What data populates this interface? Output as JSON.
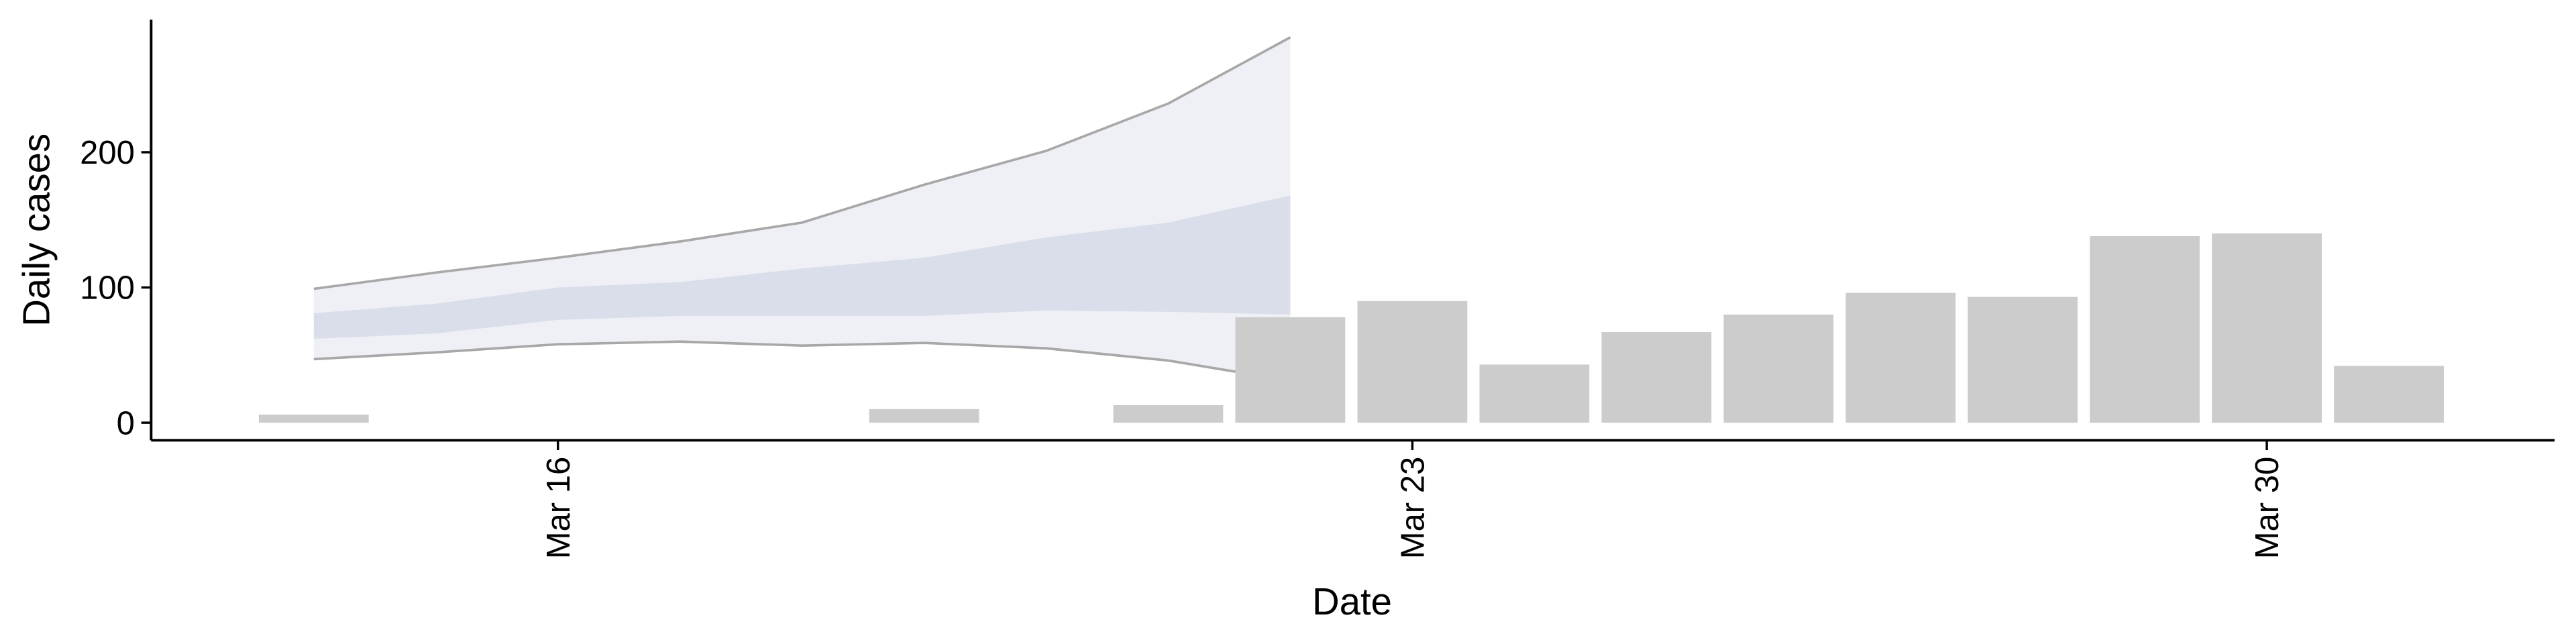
{
  "chart_data": {
    "type": "bar",
    "x_label": "Date",
    "y_label": "Daily cases",
    "categories": [
      null,
      null,
      "Mar 16",
      null,
      null,
      null,
      null,
      null,
      null,
      "Mar 23",
      null,
      null,
      null,
      null,
      null,
      null,
      "Mar 30",
      null
    ],
    "values": [
      6,
      null,
      null,
      null,
      null,
      10,
      null,
      13,
      78,
      90,
      43,
      67,
      80,
      96,
      93,
      138,
      140,
      42
    ],
    "color": "#cccccc",
    "ylim": [
      -13,
      298
    ],
    "yticks": [
      0,
      100,
      200
    ],
    "bands": [
      {
        "color": "#e9ebf2",
        "line_color": "#a8a8a8",
        "upper": [
          99,
          111,
          122,
          134,
          148,
          176,
          201,
          236,
          285,
          null,
          null,
          null,
          null,
          null,
          null,
          null,
          null,
          null
        ],
        "lower": [
          47,
          52,
          58,
          60,
          57,
          59,
          55,
          46,
          31,
          null,
          null,
          null,
          null,
          null,
          null,
          null,
          null,
          null
        ]
      },
      {
        "color": "#d3d8e7",
        "upper": [
          81,
          88,
          100,
          104,
          114,
          122,
          137,
          148,
          168,
          null,
          null,
          null,
          null,
          null,
          null,
          null,
          null,
          null
        ],
        "lower": [
          62,
          66,
          76,
          79,
          79,
          79,
          83,
          82,
          80,
          null,
          null,
          null,
          null,
          null,
          null,
          null,
          null,
          null
        ]
      }
    ]
  }
}
